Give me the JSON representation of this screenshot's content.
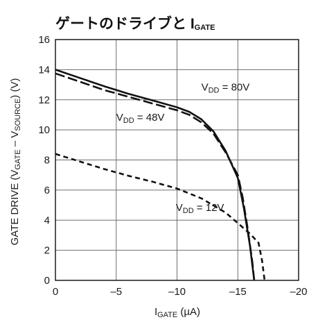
{
  "chart_data": {
    "type": "line",
    "title_main": "ゲートのドライブと I",
    "title_sub": "GATE",
    "xlabel_main": "I",
    "xlabel_sub": "GATE",
    "xlabel_unit": " (µA)",
    "ylabel_parts": [
      "GATE DRIVE (V",
      "GATE",
      " – V",
      "SOURCE",
      ") (V)"
    ],
    "xlim": [
      0,
      -20
    ],
    "ylim": [
      0,
      16
    ],
    "x_ticks": [
      0,
      -5,
      -10,
      -15,
      -20
    ],
    "x_tick_labels": [
      "0",
      "–5",
      "–10",
      "–15",
      "–20"
    ],
    "y_ticks": [
      0,
      2,
      4,
      6,
      8,
      10,
      12,
      14,
      16
    ],
    "y_tick_labels": [
      "0",
      "2",
      "4",
      "6",
      "8",
      "10",
      "12",
      "14",
      "16"
    ],
    "grid": true,
    "series": [
      {
        "name": "VDD = 80V",
        "style": "solid",
        "points": [
          [
            0,
            14.0
          ],
          [
            -2,
            13.45
          ],
          [
            -4,
            12.9
          ],
          [
            -6,
            12.4
          ],
          [
            -8,
            11.95
          ],
          [
            -10,
            11.5
          ],
          [
            -11,
            11.2
          ],
          [
            -12,
            10.7
          ],
          [
            -13,
            9.9
          ],
          [
            -14,
            8.6
          ],
          [
            -15,
            6.8
          ],
          [
            -15.5,
            4.8
          ],
          [
            -16,
            2.3
          ],
          [
            -16.35,
            0
          ]
        ]
      },
      {
        "name": "VDD = 48V",
        "style": "long-dash",
        "points": [
          [
            0,
            13.75
          ],
          [
            -2,
            13.2
          ],
          [
            -4,
            12.65
          ],
          [
            -6,
            12.2
          ],
          [
            -8,
            11.75
          ],
          [
            -10,
            11.3
          ],
          [
            -11,
            11.0
          ],
          [
            -12,
            10.5
          ],
          [
            -13,
            9.75
          ],
          [
            -14,
            8.5
          ],
          [
            -15,
            7.0
          ],
          [
            -15.4,
            5.5
          ],
          [
            -15.8,
            3.5
          ],
          [
            -16.2,
            1.2
          ],
          [
            -16.35,
            0
          ]
        ]
      },
      {
        "name": "VDD = 12V",
        "style": "short-dash",
        "points": [
          [
            0,
            8.4
          ],
          [
            -2,
            7.9
          ],
          [
            -4,
            7.4
          ],
          [
            -6,
            6.95
          ],
          [
            -8,
            6.55
          ],
          [
            -10,
            6.1
          ],
          [
            -12,
            5.45
          ],
          [
            -14,
            4.5
          ],
          [
            -15,
            3.8
          ],
          [
            -16,
            3.1
          ],
          [
            -16.7,
            2.5
          ],
          [
            -17,
            1.3
          ],
          [
            -17.2,
            0
          ]
        ]
      }
    ],
    "annotations": [
      {
        "parts": [
          "V",
          "DD",
          " = 80V"
        ],
        "at": [
          -12.0,
          12.6
        ]
      },
      {
        "parts": [
          "V",
          "DD",
          " = 48V"
        ],
        "at": [
          -5.0,
          10.6
        ]
      },
      {
        "parts": [
          "V",
          "DD",
          " = 12V"
        ],
        "at": [
          -9.9,
          4.6
        ]
      }
    ]
  }
}
